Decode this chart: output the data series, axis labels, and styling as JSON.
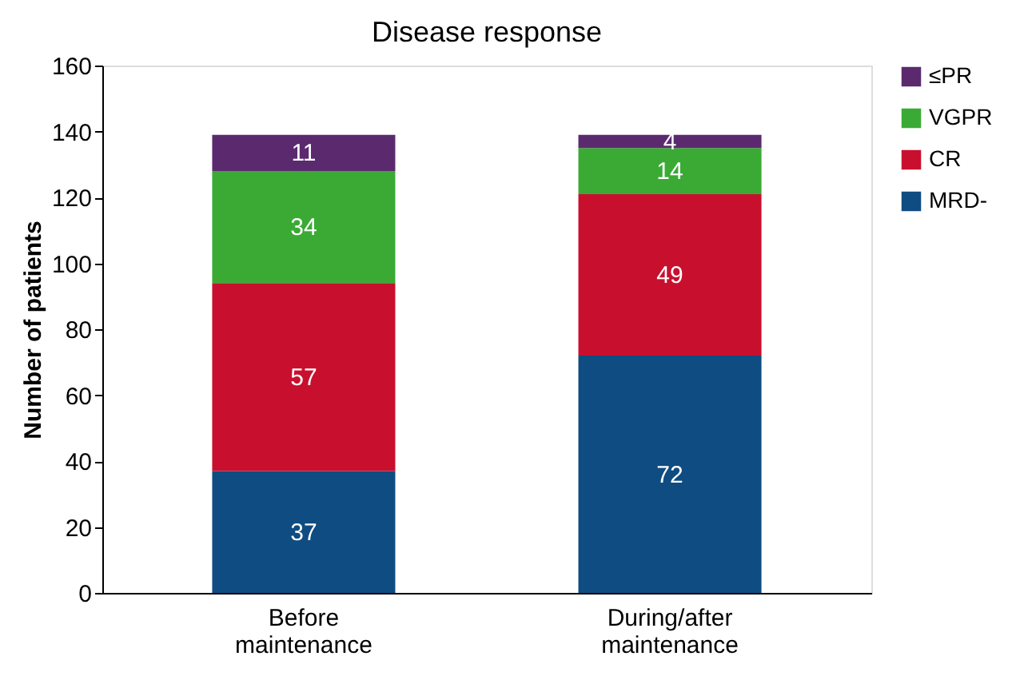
{
  "chart_data": {
    "type": "bar",
    "title": "Disease response",
    "ylabel": "Number of patients",
    "categories": [
      "Before maintenance",
      "During/after maintenance"
    ],
    "stacked": true,
    "data_labels": true,
    "legend": "right",
    "grid": false,
    "ylim": [
      0,
      160
    ],
    "yticks": [
      0,
      20,
      40,
      60,
      80,
      100,
      120,
      140,
      160
    ],
    "series": [
      {
        "name": "MRD-",
        "color": "#0f4c81",
        "values": [
          37,
          72
        ]
      },
      {
        "name": "CR",
        "color": "#c8102e",
        "values": [
          57,
          49
        ]
      },
      {
        "name": "VGPR",
        "color": "#3aaa35",
        "values": [
          34,
          14
        ]
      },
      {
        "name": "≤PR",
        "color": "#5b2a6e",
        "values": [
          11,
          4
        ]
      }
    ]
  }
}
